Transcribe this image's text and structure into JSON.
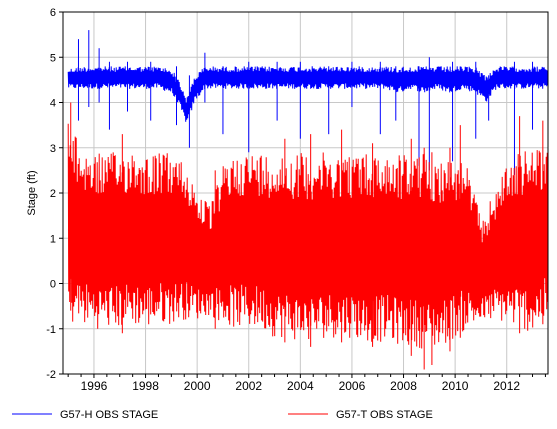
{
  "chart_data": {
    "type": "line",
    "title": "",
    "xlabel": "",
    "ylabel": "Stage (ft)",
    "xlim": [
      1994.8,
      2013.6
    ],
    "ylim": [
      -2,
      6
    ],
    "x_ticks": [
      "1996",
      "1998",
      "2000",
      "2002",
      "2004",
      "2006",
      "2008",
      "2010",
      "2012"
    ],
    "y_ticks": [
      "-2",
      "-1",
      "0",
      "1",
      "2",
      "3",
      "4",
      "5",
      "6"
    ],
    "grid": true,
    "legend_position": "bottom",
    "series": [
      {
        "name": "G57-H OBS STAGE",
        "color": "#0000ff",
        "points": [
          [
            1995.0,
            4.55
          ],
          [
            1995.5,
            4.6
          ],
          [
            1996.0,
            4.6
          ],
          [
            1996.5,
            4.6
          ],
          [
            1997.0,
            4.6
          ],
          [
            1997.5,
            4.6
          ],
          [
            1998.0,
            4.6
          ],
          [
            1998.5,
            4.6
          ],
          [
            1999.0,
            4.5
          ],
          [
            1999.3,
            4.2
          ],
          [
            1999.6,
            3.8
          ],
          [
            1999.9,
            4.3
          ],
          [
            2000.3,
            4.55
          ],
          [
            2000.8,
            4.6
          ],
          [
            2001.3,
            4.55
          ],
          [
            2001.8,
            4.55
          ],
          [
            2002.3,
            4.55
          ],
          [
            2002.8,
            4.6
          ],
          [
            2003.3,
            4.6
          ],
          [
            2003.8,
            4.6
          ],
          [
            2004.3,
            4.6
          ],
          [
            2004.8,
            4.6
          ],
          [
            2005.3,
            4.6
          ],
          [
            2005.8,
            4.6
          ],
          [
            2006.3,
            4.6
          ],
          [
            2006.8,
            4.6
          ],
          [
            2007.3,
            4.6
          ],
          [
            2007.8,
            4.55
          ],
          [
            2008.3,
            4.6
          ],
          [
            2008.8,
            4.55
          ],
          [
            2009.3,
            4.6
          ],
          [
            2009.8,
            4.55
          ],
          [
            2010.3,
            4.6
          ],
          [
            2010.8,
            4.55
          ],
          [
            2011.2,
            4.3
          ],
          [
            2011.6,
            4.5
          ],
          [
            2012.1,
            4.6
          ],
          [
            2012.6,
            4.6
          ],
          [
            2013.1,
            4.6
          ],
          [
            2013.6,
            4.6
          ]
        ],
        "band": [
          [
            1995.0,
            4.3,
            4.75
          ],
          [
            1995.5,
            4.3,
            4.8
          ],
          [
            1996.0,
            4.3,
            4.8
          ],
          [
            1996.5,
            4.3,
            4.8
          ],
          [
            1997.0,
            4.3,
            4.8
          ],
          [
            1997.5,
            4.3,
            4.8
          ],
          [
            1998.0,
            4.3,
            4.8
          ],
          [
            1998.5,
            4.3,
            4.8
          ],
          [
            1999.0,
            4.2,
            4.75
          ],
          [
            1999.3,
            3.9,
            4.5
          ],
          [
            1999.6,
            3.5,
            4.1
          ],
          [
            1999.9,
            4.0,
            4.6
          ],
          [
            2000.3,
            4.3,
            4.8
          ],
          [
            2000.8,
            4.3,
            4.8
          ],
          [
            2001.3,
            4.3,
            4.8
          ],
          [
            2001.8,
            4.3,
            4.8
          ],
          [
            2002.3,
            4.3,
            4.8
          ],
          [
            2002.8,
            4.3,
            4.8
          ],
          [
            2003.3,
            4.3,
            4.8
          ],
          [
            2003.8,
            4.3,
            4.8
          ],
          [
            2004.3,
            4.3,
            4.8
          ],
          [
            2004.8,
            4.3,
            4.8
          ],
          [
            2005.3,
            4.3,
            4.8
          ],
          [
            2005.8,
            4.3,
            4.8
          ],
          [
            2006.3,
            4.3,
            4.8
          ],
          [
            2006.8,
            4.3,
            4.8
          ],
          [
            2007.3,
            4.3,
            4.8
          ],
          [
            2007.8,
            4.2,
            4.8
          ],
          [
            2008.3,
            4.3,
            4.8
          ],
          [
            2008.8,
            4.2,
            4.8
          ],
          [
            2009.3,
            4.3,
            4.8
          ],
          [
            2009.8,
            4.2,
            4.8
          ],
          [
            2010.3,
            4.3,
            4.8
          ],
          [
            2010.8,
            4.2,
            4.8
          ],
          [
            2011.2,
            4.0,
            4.6
          ],
          [
            2011.6,
            4.3,
            4.8
          ],
          [
            2012.1,
            4.3,
            4.8
          ],
          [
            2012.6,
            4.3,
            4.8
          ],
          [
            2013.1,
            4.3,
            4.8
          ],
          [
            2013.6,
            4.3,
            4.8
          ]
        ],
        "spikes": [
          [
            1995.4,
            3.6,
            5.4
          ],
          [
            1995.8,
            3.9,
            5.6
          ],
          [
            1996.2,
            4.0,
            5.2
          ],
          [
            1996.6,
            3.4,
            4.9
          ],
          [
            1997.3,
            3.8,
            4.9
          ],
          [
            1998.2,
            3.6,
            4.9
          ],
          [
            1999.2,
            3.5,
            4.8
          ],
          [
            1999.7,
            3.0,
            4.6
          ],
          [
            2000.3,
            4.0,
            5.1
          ],
          [
            2001.0,
            3.3,
            4.8
          ],
          [
            2002.0,
            2.9,
            4.9
          ],
          [
            2003.1,
            3.6,
            4.9
          ],
          [
            2004.0,
            3.2,
            4.9
          ],
          [
            2005.1,
            3.3,
            4.8
          ],
          [
            2006.0,
            3.9,
            4.9
          ],
          [
            2007.1,
            3.3,
            4.9
          ],
          [
            2007.7,
            3.6,
            4.8
          ],
          [
            2008.6,
            2.6,
            4.8
          ],
          [
            2009.0,
            2.5,
            5.0
          ],
          [
            2009.9,
            2.7,
            4.9
          ],
          [
            2010.8,
            3.2,
            4.9
          ],
          [
            2011.3,
            3.6,
            4.6
          ],
          [
            2012.3,
            2.4,
            4.9
          ],
          [
            2013.0,
            3.4,
            4.9
          ]
        ]
      },
      {
        "name": "G57-T OBS STAGE",
        "color": "#ff0000",
        "points": [
          [
            1995.0,
            1.2
          ],
          [
            1995.5,
            0.9
          ],
          [
            1996.0,
            0.8
          ],
          [
            1996.5,
            0.8
          ],
          [
            1997.0,
            0.8
          ],
          [
            1997.5,
            0.9
          ],
          [
            1998.0,
            0.8
          ],
          [
            1998.5,
            0.8
          ],
          [
            1999.0,
            1.0
          ],
          [
            1999.5,
            0.9
          ],
          [
            2000.0,
            0.6
          ],
          [
            2000.5,
            0.2
          ],
          [
            2001.0,
            0.5
          ],
          [
            2001.5,
            0.6
          ],
          [
            2002.0,
            0.6
          ],
          [
            2002.5,
            0.5
          ],
          [
            2003.0,
            0.5
          ],
          [
            2003.5,
            0.4
          ],
          [
            2004.0,
            0.4
          ],
          [
            2004.5,
            0.4
          ],
          [
            2005.0,
            0.4
          ],
          [
            2005.5,
            0.6
          ],
          [
            2006.0,
            0.5
          ],
          [
            2006.5,
            0.4
          ],
          [
            2007.0,
            0.4
          ],
          [
            2007.5,
            0.4
          ],
          [
            2008.0,
            0.4
          ],
          [
            2008.5,
            0.4
          ],
          [
            2009.0,
            0.4
          ],
          [
            2009.5,
            0.4
          ],
          [
            2010.0,
            0.5
          ],
          [
            2010.5,
            0.5
          ],
          [
            2011.0,
            0.2
          ],
          [
            2011.5,
            0.5
          ],
          [
            2012.0,
            0.7
          ],
          [
            2012.5,
            0.8
          ],
          [
            2013.0,
            0.8
          ],
          [
            2013.6,
            0.9
          ]
        ],
        "band": [
          [
            1995.0,
            -0.9,
            3.6
          ],
          [
            1995.5,
            -0.9,
            3.0
          ],
          [
            1996.0,
            -1.0,
            2.9
          ],
          [
            1996.5,
            -1.0,
            2.9
          ],
          [
            1997.0,
            -1.0,
            2.9
          ],
          [
            1997.5,
            -0.9,
            3.0
          ],
          [
            1998.0,
            -1.0,
            2.9
          ],
          [
            1998.5,
            -0.9,
            2.9
          ],
          [
            1999.0,
            -0.9,
            2.9
          ],
          [
            1999.5,
            -0.8,
            2.7
          ],
          [
            2000.0,
            -0.8,
            2.1
          ],
          [
            2000.5,
            -0.7,
            1.7
          ],
          [
            2001.0,
            -0.9,
            2.6
          ],
          [
            2001.5,
            -1.0,
            2.9
          ],
          [
            2002.0,
            -1.0,
            2.9
          ],
          [
            2002.5,
            -1.0,
            2.9
          ],
          [
            2003.0,
            -1.2,
            2.9
          ],
          [
            2003.5,
            -1.2,
            2.9
          ],
          [
            2004.0,
            -1.3,
            2.9
          ],
          [
            2004.5,
            -1.3,
            2.9
          ],
          [
            2005.0,
            -1.2,
            2.9
          ],
          [
            2005.5,
            -1.2,
            2.9
          ],
          [
            2006.0,
            -1.2,
            2.9
          ],
          [
            2006.5,
            -1.3,
            2.9
          ],
          [
            2007.0,
            -1.3,
            2.9
          ],
          [
            2007.5,
            -1.3,
            2.9
          ],
          [
            2008.0,
            -1.4,
            2.9
          ],
          [
            2008.5,
            -1.4,
            2.9
          ],
          [
            2009.0,
            -1.5,
            2.9
          ],
          [
            2009.5,
            -1.4,
            2.8
          ],
          [
            2010.0,
            -1.2,
            2.8
          ],
          [
            2010.5,
            -1.0,
            2.6
          ],
          [
            2011.0,
            -0.9,
            1.4
          ],
          [
            2011.5,
            -0.8,
            2.0
          ],
          [
            2012.0,
            -0.9,
            2.7
          ],
          [
            2012.5,
            -1.0,
            2.9
          ],
          [
            2013.0,
            -1.1,
            3.0
          ],
          [
            2013.6,
            -0.8,
            3.1
          ]
        ],
        "spikes": [
          [
            1995.1,
            -0.6,
            4.0
          ],
          [
            1997.1,
            -1.1,
            3.3
          ],
          [
            2000.7,
            -1.0,
            2.5
          ],
          [
            2003.4,
            -1.3,
            3.2
          ],
          [
            2004.4,
            -1.4,
            3.3
          ],
          [
            2005.6,
            -1.3,
            3.4
          ],
          [
            2006.8,
            -1.4,
            3.1
          ],
          [
            2008.3,
            -1.6,
            3.2
          ],
          [
            2008.8,
            -1.9,
            3.0
          ],
          [
            2009.1,
            -1.8,
            2.9
          ],
          [
            2009.8,
            -1.5,
            3.0
          ],
          [
            2010.2,
            -1.2,
            3.5
          ],
          [
            2012.5,
            -1.1,
            3.7
          ],
          [
            2013.4,
            -0.9,
            3.6
          ]
        ]
      }
    ]
  }
}
